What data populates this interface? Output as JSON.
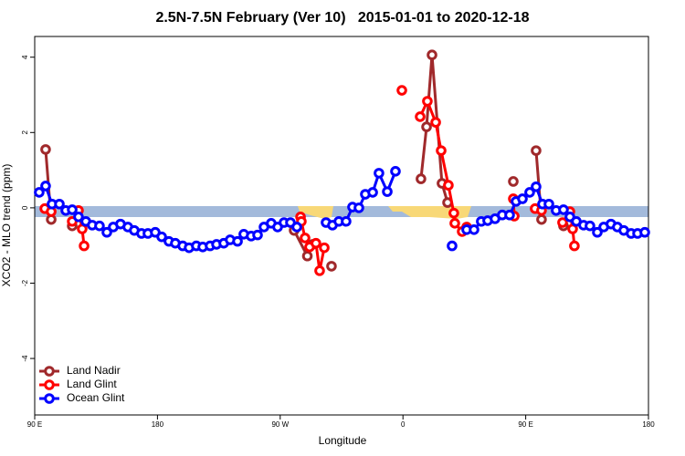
{
  "chart_data": {
    "type": "line",
    "title": "2.5N-7.5N February (Ver 10)   2015-01-01 to 2020-12-18",
    "x_label": "Longitude",
    "y_label": "XCO2 - MLO trend (ppm)",
    "xlim": [
      90,
      540
    ],
    "ylim": [
      -5.5,
      4.55
    ],
    "xticks": [
      {
        "value": 90,
        "label": "90 E"
      },
      {
        "value": 180,
        "label": "180"
      },
      {
        "value": 270,
        "label": "90 W"
      },
      {
        "value": 360,
        "label": "0"
      },
      {
        "value": 450,
        "label": "90 E"
      },
      {
        "value": 540,
        "label": "180"
      }
    ],
    "yticks": [
      -4,
      -2,
      0,
      2,
      4
    ],
    "legend": "bottom-left",
    "series": [
      {
        "name": "Land Nadir",
        "color": "#a0292b",
        "x": [
          98.0,
          102.1,
          null,
          117.5,
          null,
          280.2,
          289.9,
          293.9,
          null,
          307.6,
          null,
          373.2,
          377.3,
          381.3,
          388.6,
          392.7,
          null,
          440.9,
          null,
          457.6,
          461.6,
          null,
          477.7
        ],
        "values": [
          1.55,
          -0.31,
          null,
          -0.48,
          null,
          -0.6,
          -1.28,
          -0.97,
          null,
          -1.55,
          null,
          0.77,
          2.15,
          4.06,
          0.65,
          0.14,
          null,
          0.7,
          null,
          1.52,
          -0.31,
          null,
          -0.48
        ]
      },
      {
        "name": "Land Glint",
        "color": "#ff0000",
        "x": [
          97.4,
          102.1,
          null,
          117.5,
          122.1,
          124.8,
          126.2,
          null,
          284.9,
          285.5,
          288.2,
          291.5,
          296.2,
          298.9,
          302.3,
          null,
          359.2,
          null,
          372.6,
          377.9,
          384.0,
          388.0,
          393.3,
          397.3,
          398.0,
          403.4,
          406.7,
          null,
          440.9,
          441.6,
          null,
          456.9,
          461.6,
          null,
          477.0,
          482.4,
          484.4,
          485.7
        ],
        "values": [
          -0.02,
          -0.1,
          null,
          -0.36,
          -0.07,
          -0.56,
          -1.01,
          null,
          -0.24,
          -0.36,
          -0.8,
          -1.04,
          -0.94,
          -1.67,
          -1.06,
          null,
          3.12,
          null,
          2.42,
          2.83,
          2.27,
          1.52,
          0.6,
          -0.14,
          -0.41,
          -0.63,
          -0.51,
          null,
          0.24,
          -0.22,
          null,
          -0.02,
          -0.07,
          null,
          -0.39,
          -0.1,
          -0.56,
          -1.01
        ]
      },
      {
        "name": "Ocean Glint",
        "color": "#0000ff",
        "x": [
          93.3,
          98.0,
          102.7,
          108.1,
          112.8,
          117.5,
          122.1,
          127.5,
          132.2,
          137.5,
          142.9,
          147.6,
          152.9,
          158.3,
          163.0,
          168.3,
          173.0,
          178.4,
          183.1,
          188.4,
          193.1,
          198.5,
          203.2,
          208.5,
          213.2,
          218.6,
          223.3,
          228.6,
          233.3,
          238.7,
          243.3,
          248.7,
          253.4,
          258.1,
          263.4,
          268.1,
          272.8,
          277.5,
          282.2,
          null,
          303.6,
          308.3,
          313.0,
          318.3,
          323.0,
          327.7,
          332.4,
          337.8,
          342.4,
          348.5,
          354.5,
          null,
          396.0,
          null,
          406.7,
          412.1,
          417.4,
          422.1,
          427.5,
          432.8,
          438.2,
          442.9,
          447.6,
          452.9,
          457.6,
          462.3,
          467.0,
          472.3,
          477.7,
          482.4,
          487.1,
          492.4,
          497.1,
          502.5,
          507.2,
          512.5,
          517.2,
          521.9,
          527.3,
          532.0,
          537.3
        ],
        "values": [
          0.41,
          0.58,
          0.1,
          0.1,
          -0.07,
          -0.05,
          -0.24,
          -0.36,
          -0.46,
          -0.48,
          -0.65,
          -0.51,
          -0.43,
          -0.51,
          -0.6,
          -0.68,
          -0.68,
          -0.65,
          -0.77,
          -0.89,
          -0.94,
          -1.01,
          -1.06,
          -1.01,
          -1.04,
          -1.01,
          -0.97,
          -0.94,
          -0.85,
          -0.89,
          -0.7,
          -0.75,
          -0.72,
          -0.51,
          -0.41,
          -0.51,
          -0.39,
          -0.39,
          -0.51,
          null,
          -0.39,
          -0.46,
          -0.36,
          -0.36,
          0.02,
          0.0,
          0.36,
          0.41,
          0.92,
          0.43,
          0.97,
          null,
          -1.01,
          null,
          -0.58,
          -0.58,
          -0.36,
          -0.34,
          -0.29,
          -0.19,
          -0.19,
          0.17,
          0.24,
          0.41,
          0.56,
          0.1,
          0.1,
          -0.07,
          -0.05,
          -0.24,
          -0.36,
          -0.46,
          -0.48,
          -0.65,
          -0.51,
          -0.43,
          -0.51,
          -0.6,
          -0.68,
          -0.68,
          -0.65
        ]
      }
    ]
  }
}
